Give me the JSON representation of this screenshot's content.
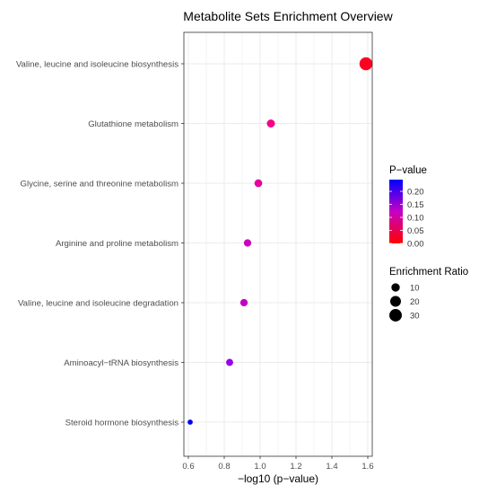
{
  "chart_data": {
    "type": "scatter",
    "title": "Metabolite Sets Enrichment Overview",
    "xlabel": "−log10 (p−value)",
    "ylabel": "",
    "xlim": [
      0.575,
      1.625
    ],
    "xticks": [
      "0.6",
      "0.8",
      "1.0",
      "1.2",
      "1.4",
      "1.6"
    ],
    "grid": true,
    "categories": [
      "Valine, leucine and isoleucine biosynthesis",
      "Glutathione metabolism",
      "Glycine, serine and threonine metabolism",
      "Arginine and proline metabolism",
      "Valine, leucine and isoleucine degradation",
      "Aminoacyl−tRNA biosynthesis",
      "Steroid hormone biosynthesis"
    ],
    "points": [
      {
        "category": "Valine, leucine and isoleucine biosynthesis",
        "x": 1.59,
        "p_value": 0.026,
        "enrichment_ratio": 33
      },
      {
        "category": "Glutathione metabolism",
        "x": 1.06,
        "p_value": 0.087,
        "enrichment_ratio": 9
      },
      {
        "category": "Glycine, serine and threonine metabolism",
        "x": 0.99,
        "p_value": 0.102,
        "enrichment_ratio": 8
      },
      {
        "category": "Arginine and proline metabolism",
        "x": 0.93,
        "p_value": 0.117,
        "enrichment_ratio": 7
      },
      {
        "category": "Valine, leucine and isoleucine degradation",
        "x": 0.91,
        "p_value": 0.123,
        "enrichment_ratio": 7
      },
      {
        "category": "Aminoacyl−tRNA biosynthesis",
        "x": 0.83,
        "p_value": 0.148,
        "enrichment_ratio": 6
      },
      {
        "category": "Steroid hormone biosynthesis",
        "x": 0.61,
        "p_value": 0.245,
        "enrichment_ratio": 2
      }
    ],
    "color_legend": {
      "title": "P−value",
      "ticks": [
        "0.20",
        "0.15",
        "0.10",
        "0.05",
        "0.00"
      ],
      "tick_values": [
        0.2,
        0.15,
        0.1,
        0.05,
        0.0
      ],
      "range": [
        0.0,
        0.245
      ],
      "low_color": "#FF0000",
      "high_color": "#0000FF"
    },
    "size_legend": {
      "title": "Enrichment Ratio",
      "values": [
        10,
        20,
        30
      ],
      "labels": [
        "10",
        "20",
        "30"
      ]
    },
    "legend_position": "right",
    "background": "#FFFFFF",
    "grid_color": "#EBEBEB",
    "panel_border_color": "#333333"
  }
}
